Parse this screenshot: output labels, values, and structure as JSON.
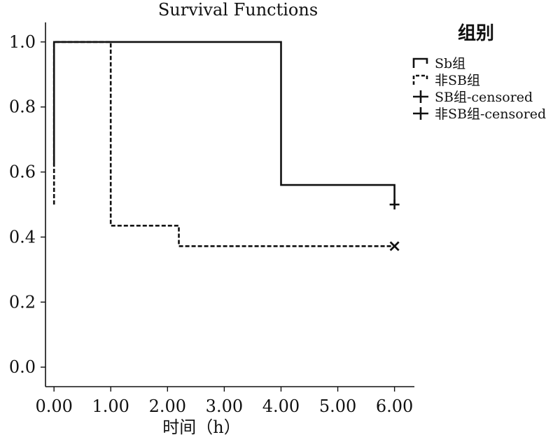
{
  "chart_data": {
    "type": "line",
    "title": "Survival Functions",
    "xlabel": "时间（h）",
    "ylabel": "",
    "xlim": [
      -0.15,
      6.35
    ],
    "ylim": [
      -0.06,
      1.06
    ],
    "x_ticks": [
      {
        "value": 0,
        "label": "0.00"
      },
      {
        "value": 1,
        "label": "1.00"
      },
      {
        "value": 2,
        "label": "2.00"
      },
      {
        "value": 3,
        "label": "3.00"
      },
      {
        "value": 4,
        "label": "4.00"
      },
      {
        "value": 5,
        "label": "5.00"
      },
      {
        "value": 6,
        "label": "6.00"
      }
    ],
    "y_ticks": [
      {
        "value": 0.0,
        "label": "0.0"
      },
      {
        "value": 0.2,
        "label": "0.2"
      },
      {
        "value": 0.4,
        "label": "0.4"
      },
      {
        "value": 0.6,
        "label": "0.6"
      },
      {
        "value": 0.8,
        "label": "0.8"
      },
      {
        "value": 1.0,
        "label": "1.0"
      }
    ],
    "grid": false,
    "legend_title": "组别",
    "legend_position": "top-right",
    "series": [
      {
        "name": "Sb组",
        "style": "solid",
        "color": "#111111",
        "points": [
          [
            0,
            0.62
          ],
          [
            0,
            1.0
          ],
          [
            4,
            1.0
          ],
          [
            4,
            0.56
          ],
          [
            6,
            0.56
          ],
          [
            6,
            0.5
          ]
        ]
      },
      {
        "name": "非SB组",
        "style": "dashed",
        "color": "#111111",
        "points": [
          [
            0,
            0.5
          ],
          [
            0,
            1.0
          ],
          [
            1,
            1.0
          ],
          [
            1,
            0.435
          ],
          [
            2.2,
            0.435
          ],
          [
            2.2,
            0.372
          ],
          [
            6,
            0.372
          ]
        ]
      }
    ],
    "censored": [
      {
        "name": "SB组-censored",
        "marker": "plus",
        "x": 6,
        "y": 0.5
      },
      {
        "name": "非SB组-censored",
        "marker": "x",
        "x": 6,
        "y": 0.372
      }
    ]
  }
}
